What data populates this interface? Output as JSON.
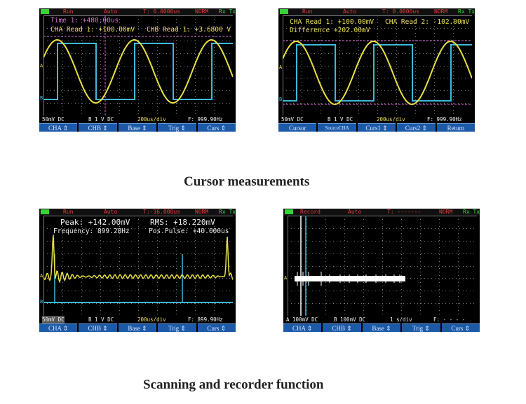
{
  "panels": [
    {
      "status": {
        "state": "Run",
        "mode": "Auto",
        "time": "T: 0.0000us",
        "trig": "NORM",
        "dir": "Rx Tx"
      },
      "readouts": [
        {
          "label": "Time 1:",
          "value": "+480.00us",
          "color": "#d870d8"
        },
        {
          "label": "CHA Read 1:",
          "value": "+100.00mV",
          "color": "#f0e060"
        },
        {
          "label": "CHB Read 1:",
          "value": "+3.6800 V",
          "color": "#f0e060"
        }
      ],
      "info": {
        "cha": "50mV DC",
        "chb": "B  1 V  DC",
        "timebase": "200us/div",
        "freq": "F: 999.90Hz"
      },
      "menu": [
        "CHA ⇕",
        "CHB ⇕",
        "Base ⇕",
        "Trig ⇕",
        "Curs ⇕"
      ]
    },
    {
      "status": {
        "state": "Run",
        "mode": "Auto",
        "time": "T: 0.0000us",
        "trig": "NORM",
        "dir": "Rx Tx"
      },
      "readouts": [
        {
          "label": "CHA Read 1:",
          "value": "+100.00mV",
          "color": "#f0e060"
        },
        {
          "label": "CHA Read 2:",
          "value": "-102.00mV",
          "color": "#f0e060"
        },
        {
          "label": "Difference",
          "value": "+202.00mV",
          "color": "#f0e060"
        }
      ],
      "info": {
        "cha": "50mV DC",
        "chb": "B  1 V  DC",
        "timebase": "200us/div",
        "freq": "F: 999.90Hz"
      },
      "menu": [
        "Cursor",
        "SourceCHA",
        "Curs1 ⇕",
        "Curs2 ⇕",
        "Return"
      ]
    },
    {
      "status": {
        "state": "Run",
        "mode": "Auto",
        "time": "T:-16.000us",
        "trig": "NORM",
        "dir": "Rx Tx"
      },
      "readouts": [
        {
          "label": "Peak:",
          "value": "+142.00mV",
          "color": "#f0f0f0"
        },
        {
          "label": "RMS:",
          "value": "+18.220mV",
          "color": "#f0f0f0"
        },
        {
          "label": "Frequency:",
          "value": "899.28Hz",
          "color": "#f0f0f0"
        },
        {
          "label": "Pos.Pulse:",
          "value": "+40.000us",
          "color": "#f0f0f0"
        }
      ],
      "info": {
        "cha": "50mV DC",
        "chb": "B  1 V  DC",
        "timebase": "200us/div",
        "freq": "F: 899.90Hz"
      },
      "menu": [
        "CHA ⇕",
        "CHB ⇕",
        "Base ⇕",
        "Trig ⇕",
        "Curs ⇕"
      ]
    },
    {
      "status": {
        "state": "Record",
        "mode": "Auto",
        "time": "T: -------",
        "trig": "NORM",
        "dir": "Rx Tx"
      },
      "readouts": [],
      "info": {
        "cha": "A 100mV DC",
        "chb": "B 100mV DC",
        "timebase": "1 s/div",
        "freq": "F:  - - - -"
      },
      "menu": [
        "CHA ⇕",
        "CHB ⇕",
        "Base ⇕",
        "Trig ⇕",
        "Curs ⇕"
      ]
    }
  ],
  "captions": {
    "top": "Cursor measurements",
    "bottom": "Scanning and recorder function"
  },
  "colors": {
    "trace_a": "#e8e040",
    "trace_b": "#40b8d8",
    "menu_bg": "#1c5aa8",
    "status_text": "#e04040",
    "cursor_magenta": "#d870d8"
  }
}
